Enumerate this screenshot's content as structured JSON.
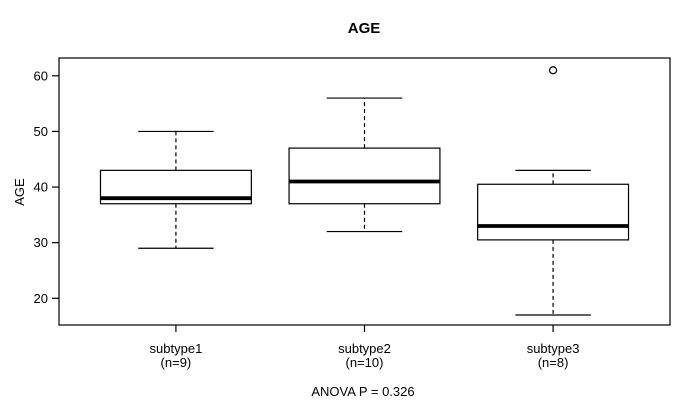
{
  "chart_data": {
    "type": "boxplot",
    "title": "AGE",
    "ylabel": "AGE",
    "xlabel": "",
    "footer": "ANOVA P = 0.326",
    "y_ticks": [
      20,
      30,
      40,
      50,
      60
    ],
    "ylim": [
      15.2,
      63.2
    ],
    "grid": false,
    "legend": "none",
    "groups": [
      {
        "label": "subtype1",
        "sublabel": "(n=9)",
        "whisker_low": 29,
        "q1": 37,
        "median": 38,
        "q3": 43,
        "whisker_high": 50,
        "outliers": []
      },
      {
        "label": "subtype2",
        "sublabel": "(n=10)",
        "whisker_low": 32,
        "q1": 37,
        "median": 41,
        "q3": 47,
        "whisker_high": 56,
        "outliers": []
      },
      {
        "label": "subtype3",
        "sublabel": "(n=8)",
        "whisker_low": 17,
        "q1": 30.5,
        "median": 33,
        "q3": 40.5,
        "whisker_high": 43,
        "outliers": [
          61
        ]
      }
    ],
    "colors": {
      "line": "#000000",
      "box_fill": "#ffffff",
      "background": "#ffffff"
    }
  }
}
